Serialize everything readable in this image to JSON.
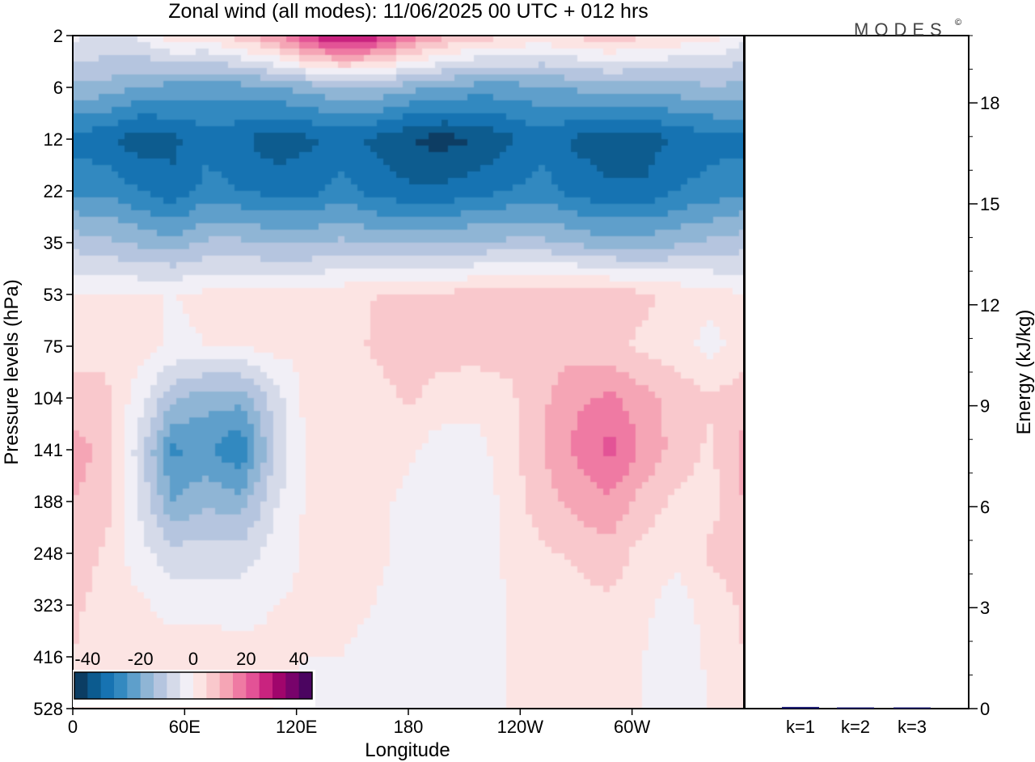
{
  "chart_data": [
    {
      "type": "heatmap",
      "title": "Zonal wind (all modes):  11/06/2025  00 UTC  + 012 hrs",
      "xlabel": "Longitude",
      "ylabel": "Pressure levels (hPa)",
      "x_ticks": [
        "0",
        "60E",
        "120E",
        "180",
        "120W",
        "60W"
      ],
      "x_tick_degrees": [
        0,
        60,
        120,
        180,
        240,
        300
      ],
      "xlim": [
        0,
        360
      ],
      "y_ticks": [
        "2",
        "6",
        "12",
        "22",
        "35",
        "53",
        "75",
        "104",
        "141",
        "188",
        "248",
        "323",
        "416",
        "528"
      ],
      "colorbar": {
        "tick_labels": [
          "-40",
          "-20",
          "0",
          "20",
          "40"
        ],
        "tick_values": [
          -40,
          -20,
          0,
          20,
          40
        ],
        "range": [
          -45,
          45
        ],
        "step": 5,
        "colors": [
          "#0b3d63",
          "#0c5b8f",
          "#1773b2",
          "#3389c0",
          "#5e9fcb",
          "#8fb5d5",
          "#b5c5df",
          "#d5dae9",
          "#f1eff6",
          "#fce4e3",
          "#f9c8cc",
          "#f5a5b5",
          "#ef7aa3",
          "#e35296",
          "#c9237f",
          "#a0056c",
          "#78036b",
          "#4b0560"
        ]
      },
      "rows": [
        {
          "level": "2",
          "values": [
            -4,
            -5,
            -4,
            3,
            3,
            8,
            14,
            26,
            32,
            28,
            18,
            12,
            8,
            6,
            4,
            6,
            9,
            6,
            4,
            3
          ]
        },
        {
          "level": "6",
          "values": [
            -16,
            -17,
            -20,
            -22,
            -23,
            -22,
            -20,
            -18,
            -15,
            -15,
            -18,
            -20,
            -22,
            -22,
            -21,
            -19,
            -18,
            -18,
            -17,
            -16
          ]
        },
        {
          "level": "12",
          "values": [
            -32,
            -34,
            -38,
            -36,
            -32,
            -34,
            -38,
            -36,
            -34,
            -36,
            -40,
            -42,
            -40,
            -36,
            -32,
            -36,
            -38,
            -38,
            -34,
            -32
          ]
        },
        {
          "level": "22",
          "values": [
            -26,
            -26,
            -30,
            -34,
            -28,
            -30,
            -32,
            -32,
            -28,
            -32,
            -34,
            -34,
            -32,
            -30,
            -28,
            -32,
            -34,
            -34,
            -30,
            -28
          ]
        },
        {
          "level": "35",
          "values": [
            -12,
            -14,
            -16,
            -18,
            -14,
            -14,
            -16,
            -16,
            -14,
            -16,
            -16,
            -16,
            -14,
            -14,
            -14,
            -16,
            -18,
            -18,
            -16,
            -14
          ]
        },
        {
          "level": "53",
          "values": [
            0,
            1,
            0,
            0,
            1,
            1,
            2,
            2,
            3,
            5,
            6,
            6,
            7,
            8,
            9,
            9,
            8,
            6,
            4,
            2
          ]
        },
        {
          "level": "75",
          "values": [
            3,
            4,
            2,
            -1,
            0,
            0,
            2,
            1,
            2,
            6,
            7,
            7,
            7,
            7,
            8,
            8,
            6,
            4,
            2,
            -2
          ]
        },
        {
          "level": "104",
          "values": [
            7,
            6,
            -3,
            -14,
            -18,
            -18,
            -8,
            2,
            4,
            3,
            6,
            3,
            2,
            4,
            9,
            14,
            16,
            12,
            8,
            6
          ]
        },
        {
          "level": "141",
          "values": [
            12,
            9,
            -8,
            -26,
            -24,
            -30,
            -10,
            1,
            5,
            2,
            1,
            -3,
            -2,
            3,
            10,
            16,
            22,
            14,
            8,
            4
          ]
        },
        {
          "level": "188",
          "values": [
            10,
            7,
            -6,
            -20,
            -16,
            -18,
            -6,
            1,
            3,
            1,
            -1,
            -5,
            -4,
            2,
            8,
            12,
            14,
            8,
            4,
            3
          ]
        },
        {
          "level": "248",
          "values": [
            8,
            4,
            -3,
            -8,
            -8,
            -8,
            -3,
            1,
            2,
            1,
            -1,
            -3,
            -2,
            1,
            4,
            6,
            8,
            3,
            1,
            6
          ]
        },
        {
          "level": "323",
          "values": [
            6,
            3,
            1,
            -2,
            -2,
            -2,
            0,
            1,
            1,
            0,
            -2,
            -3,
            -2,
            0,
            2,
            3,
            4,
            1,
            -2,
            2
          ]
        },
        {
          "level": "416",
          "values": [
            5,
            2,
            1,
            3,
            3,
            2,
            1,
            0,
            0,
            -1,
            -2,
            -2,
            -1,
            0,
            1,
            2,
            2,
            0,
            -3,
            1
          ]
        },
        {
          "level": "528",
          "values": [
            3,
            1,
            1,
            2,
            2,
            1,
            0,
            -1,
            -1,
            -2,
            -3,
            -2,
            -1,
            0,
            1,
            1,
            1,
            0,
            -2,
            0
          ]
        }
      ]
    },
    {
      "type": "bar",
      "ylabel": "Energy (kJ/kg)",
      "categories": [
        "k=1",
        "k=2",
        "k=3"
      ],
      "values": [
        0.05,
        0.03,
        0.02
      ],
      "ylim": [
        0,
        20
      ],
      "y_ticks": [
        "0",
        "3",
        "6",
        "9",
        "12",
        "15",
        "18"
      ],
      "y_tick_values": [
        0,
        3,
        6,
        9,
        12,
        15,
        18
      ],
      "minor_step": 1,
      "bar_colors": [
        "#1a1a6e",
        "#1a1a6e",
        "#1a1a6e"
      ]
    }
  ],
  "brand": {
    "logo_text": "MODES",
    "logo_mark": "©"
  },
  "colors": {
    "frame": "#000000",
    "background": "#ffffff"
  }
}
